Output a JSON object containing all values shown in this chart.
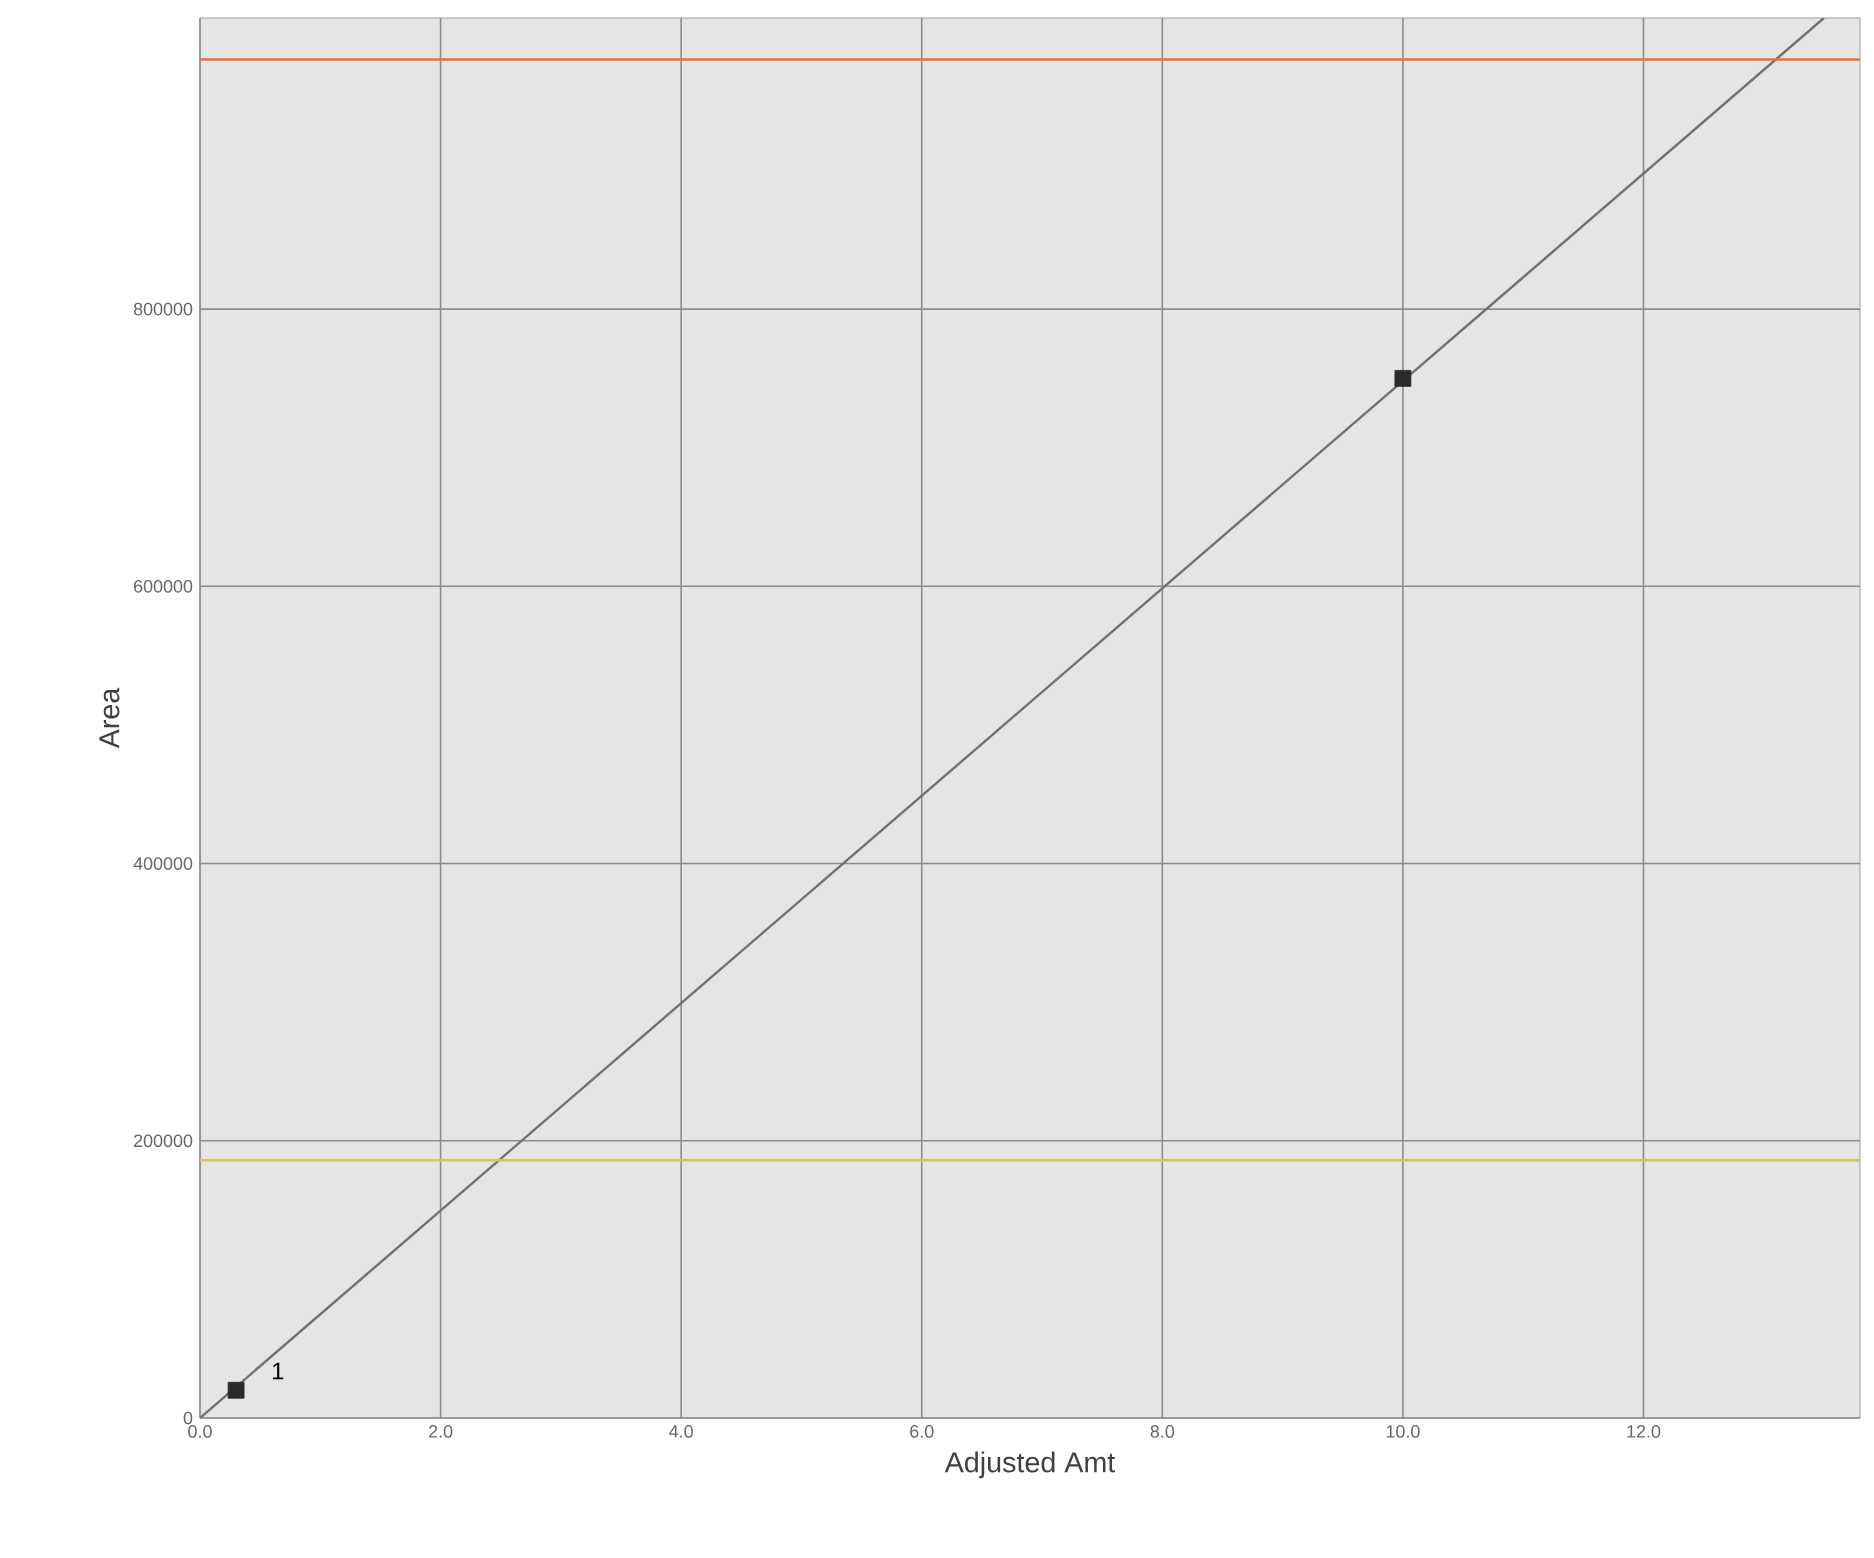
{
  "chart_data": {
    "type": "scatter",
    "xlabel": "Adjusted Amt",
    "ylabel": "Area",
    "series": [
      {
        "color": "#2a2a2a",
        "x": [
          0.3,
          10.0
        ],
        "values": [
          20000,
          750000
        ],
        "marker": "square"
      },
      {
        "type": "line",
        "color": "#707070",
        "x": [
          0,
          13.5
        ],
        "values": [
          0,
          1010000
        ],
        "marker": "none",
        "line_style": "solid"
      }
    ],
    "xlim": [
      0,
      13.8
    ],
    "ylim": [
      0,
      1010000
    ],
    "xticks": [
      {
        "value": 0,
        "label": "0.0"
      },
      {
        "value": 2,
        "label": "2.0"
      },
      {
        "value": 4,
        "label": "4.0"
      },
      {
        "value": 6,
        "label": "6.0"
      },
      {
        "value": 8,
        "label": "8.0"
      },
      {
        "value": 10,
        "label": "10.0"
      },
      {
        "value": 12,
        "label": "12.0"
      }
    ],
    "yticks": [
      0,
      200000,
      400000,
      600000,
      800000
    ],
    "ref_lines": [
      {
        "axis": "y",
        "value": 980000,
        "color": "#e8703a"
      },
      {
        "axis": "y",
        "value": 186000,
        "color": "#d4c84a"
      }
    ],
    "annotations": [
      "1"
    ],
    "grid": true
  }
}
